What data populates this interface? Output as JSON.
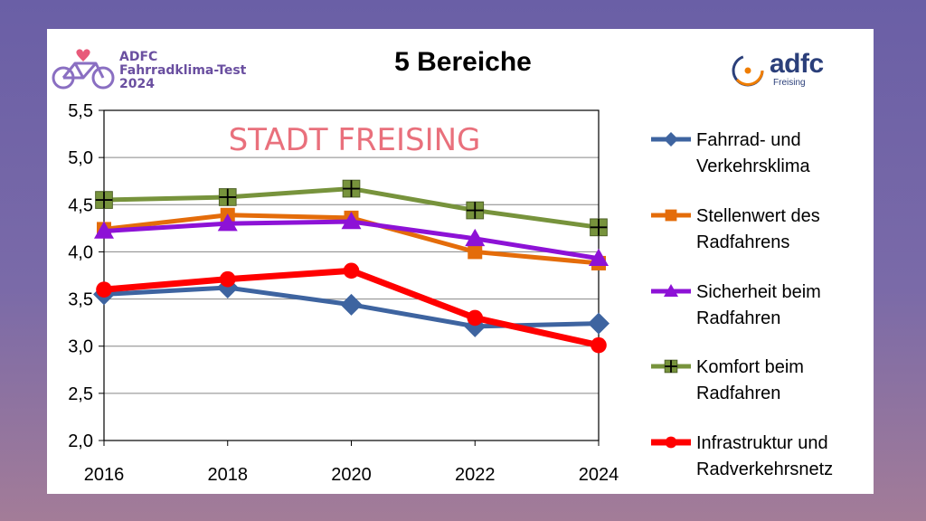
{
  "header": {
    "title": "5 Bereiche",
    "left_logo": {
      "line1": "ADFC",
      "line2": "Fahrradklima-Test",
      "line3": "2024"
    },
    "right_logo": {
      "word": "adfc",
      "sub": "Freising"
    }
  },
  "colors": {
    "series": [
      "#3e64a0",
      "#e46c0a",
      "#8d12d6",
      "#77933c",
      "#ff0000"
    ],
    "annotation": "#e9707c",
    "grid": "#868686"
  },
  "chart_data": {
    "type": "line",
    "annotation": "STADT FREISING",
    "x": [
      "2016",
      "2018",
      "2020",
      "2022",
      "2024"
    ],
    "ylim": [
      2.0,
      5.5
    ],
    "yticks": [
      "2,0",
      "2,5",
      "3,0",
      "3,5",
      "4,0",
      "4,5",
      "5,0",
      "5,5"
    ],
    "grid": true,
    "legend_position": "right",
    "series": [
      {
        "name": "Fahrrad- und\nVerkehrsklima",
        "marker": "diamond",
        "values": [
          3.55,
          3.62,
          3.44,
          3.21,
          3.24
        ]
      },
      {
        "name": "Stellenwert des\nRadfahrens",
        "marker": "square",
        "values": [
          4.24,
          4.39,
          4.36,
          4.0,
          3.88
        ]
      },
      {
        "name": "Sicherheit beim\nRadfahren",
        "marker": "triangle",
        "values": [
          4.22,
          4.3,
          4.32,
          4.14,
          3.93
        ]
      },
      {
        "name": "Komfort beim\nRadfahren",
        "marker": "plus-square",
        "values": [
          4.55,
          4.58,
          4.67,
          4.44,
          4.26
        ]
      },
      {
        "name": "Infrastruktur und\nRadverkehrsnetz",
        "marker": "circle",
        "values": [
          3.6,
          3.71,
          3.8,
          3.3,
          3.01
        ]
      }
    ]
  }
}
